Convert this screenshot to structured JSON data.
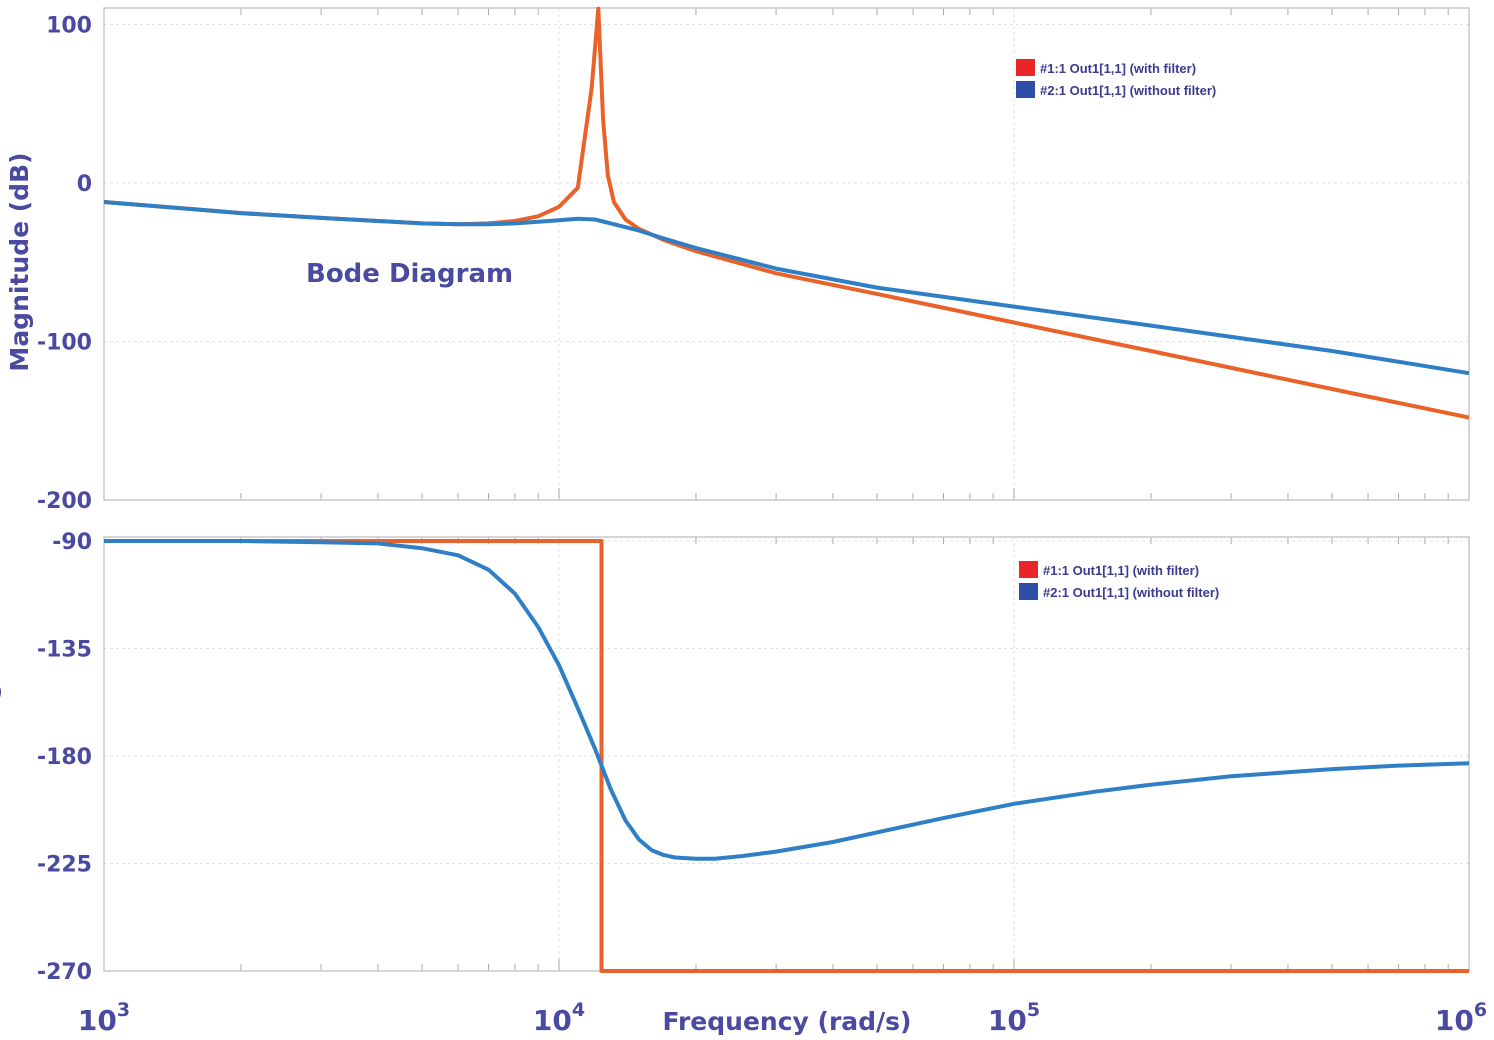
{
  "chart_data": [
    {
      "type": "line",
      "title": "Bode Diagram",
      "ylabel": "Magnitude (dB)",
      "xscale": "log",
      "xlim": [
        1000,
        1000000
      ],
      "ylim": [
        -200,
        110
      ],
      "yticks": [
        100,
        0,
        -100,
        -200
      ],
      "ytick_labels": [
        "100",
        "0",
        "-100",
        "-200"
      ],
      "grid": true,
      "legend_position": "top-right",
      "series": [
        {
          "name": "#1:1 Out1[1,1] (with filter)",
          "color": "#e8622a",
          "x": [
            1000,
            1500,
            2000,
            3000,
            4000,
            5000,
            6000,
            7000,
            8000,
            9000,
            10000,
            11000,
            11800,
            12200,
            12500,
            12800,
            13200,
            14000,
            15000,
            17000,
            20000,
            30000,
            50000,
            100000,
            200000,
            500000,
            1000000
          ],
          "y": [
            -12,
            -16,
            -19,
            -22,
            -24,
            -25.5,
            -26,
            -25.5,
            -24,
            -21,
            -15,
            -3,
            60,
            110,
            40,
            5,
            -12,
            -23,
            -29,
            -36,
            -43,
            -57,
            -70,
            -88,
            -106,
            -130,
            -148
          ]
        },
        {
          "name": "#2:1 Out1[1,1] (without filter)",
          "color": "#2e7fc6",
          "x": [
            1000,
            2000,
            3000,
            4000,
            5000,
            6000,
            7000,
            8000,
            9000,
            10000,
            11000,
            12000,
            13000,
            15000,
            17000,
            20000,
            30000,
            50000,
            100000,
            200000,
            500000,
            1000000
          ],
          "y": [
            -12,
            -19,
            -22,
            -24,
            -25.5,
            -26,
            -26,
            -25.5,
            -24.5,
            -23.5,
            -22.5,
            -23,
            -25.5,
            -30,
            -35,
            -41,
            -54,
            -66,
            -78,
            -90,
            -106,
            -120
          ]
        }
      ],
      "xticks": [
        1000,
        10000,
        100000,
        1000000
      ]
    },
    {
      "type": "line",
      "ylabel": "Phase (deg)",
      "xlabel": "Frequency (rad/s)",
      "xscale": "log",
      "xlim": [
        1000,
        1000000
      ],
      "ylim": [
        -270,
        -90
      ],
      "yticks": [
        -90,
        -135,
        -180,
        -225,
        -270
      ],
      "ytick_labels": [
        "-90",
        "-135",
        "-180",
        "-225",
        "-270"
      ],
      "xtick_labels": [
        {
          "base": "10",
          "exp": "3"
        },
        {
          "base": "10",
          "exp": "4"
        },
        {
          "base": "10",
          "exp": "5"
        },
        {
          "base": "10",
          "exp": "6"
        }
      ],
      "grid": true,
      "legend_position": "top-right",
      "series": [
        {
          "name": "#1:1 Out1[1,1] (with filter)",
          "color": "#e8622a",
          "x": [
            1000,
            5000,
            10000,
            12400,
            12400,
            20000,
            50000,
            100000,
            500000,
            1000000
          ],
          "y": [
            -90,
            -90,
            -90,
            -90,
            -270,
            -270,
            -270,
            -270,
            -270,
            -270
          ]
        },
        {
          "name": "#2:1 Out1[1,1] (without filter)",
          "color": "#2e7fc6",
          "x": [
            1000,
            2000,
            3000,
            4000,
            5000,
            6000,
            7000,
            8000,
            9000,
            10000,
            11000,
            12000,
            13000,
            14000,
            15000,
            16000,
            17000,
            18000,
            20000,
            22000,
            25000,
            30000,
            40000,
            50000,
            70000,
            100000,
            150000,
            200000,
            300000,
            500000,
            700000,
            1000000
          ],
          "y": [
            -90,
            -90,
            -90.5,
            -91,
            -93,
            -96,
            -102,
            -112,
            -126,
            -142,
            -160,
            -177,
            -194,
            -207,
            -215,
            -219.5,
            -221.5,
            -222.5,
            -223,
            -223,
            -222,
            -220,
            -216,
            -212,
            -206,
            -200,
            -195,
            -192,
            -188.5,
            -185.5,
            -184,
            -183
          ]
        }
      ],
      "xticks": [
        1000,
        10000,
        100000,
        1000000
      ]
    }
  ]
}
